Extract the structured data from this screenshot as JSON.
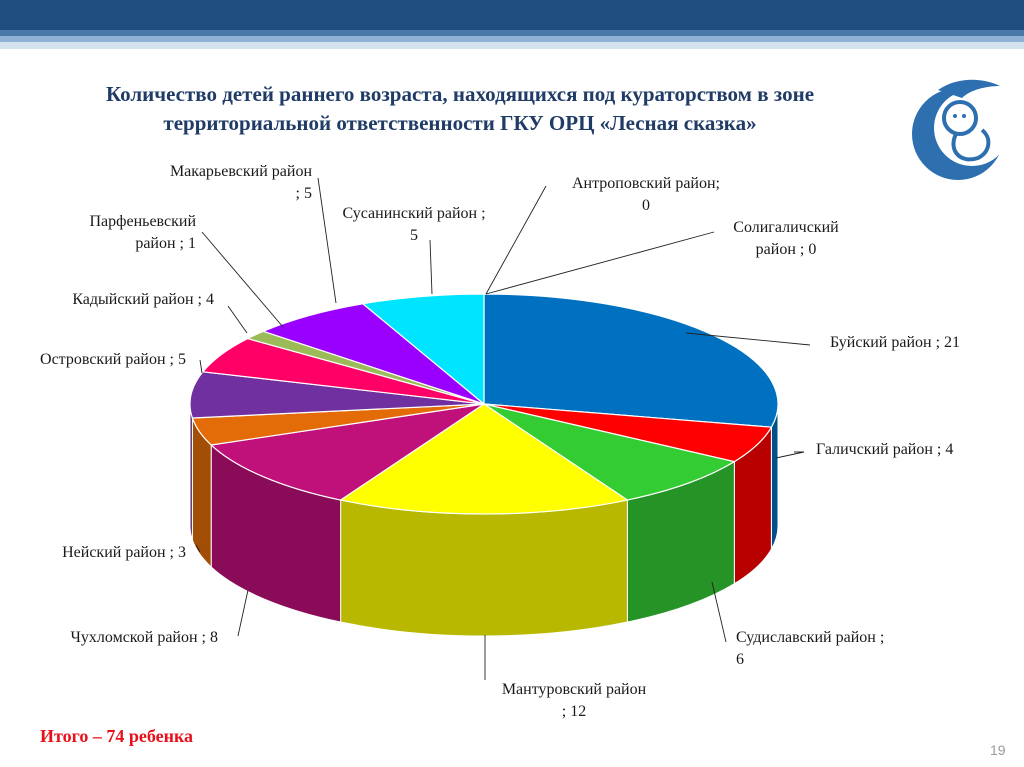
{
  "title": {
    "line1": "Количество детей раннего возраста, находящихся под кураторством в зоне",
    "line2": "территориальной ответственности ГКУ ОРЦ «Лесная сказка»"
  },
  "total": "Итого –  74 ребенка",
  "page_number": "19",
  "colors": {
    "header_dark": "#1f4e7e",
    "title": "#1f3b66",
    "total": "#e8101a"
  },
  "chart_data": {
    "type": "pie",
    "title": "Количество детей раннего возраста, находящихся под кураторством в зоне территориальной ответственности ГКУ ОРЦ «Лесная сказка»",
    "total": 74,
    "slices": [
      {
        "name": "Буйский район",
        "value": 21,
        "color": "#0070c0",
        "label": [
          "Буйский район ; 21"
        ]
      },
      {
        "name": "Галичский район",
        "value": 4,
        "color": "#ff0000",
        "label": [
          "Галичский район ; 4"
        ]
      },
      {
        "name": "Судиславский район",
        "value": 6,
        "color": "#33cc33",
        "label": [
          "Судиславский район ;",
          "6"
        ]
      },
      {
        "name": "Мантуровский район",
        "value": 12,
        "color": "#ffff00",
        "label": [
          "Мантуровский район",
          "; 12"
        ]
      },
      {
        "name": "Чухломской район",
        "value": 8,
        "color": "#c0107a",
        "label": [
          "Чухломской район ; 8"
        ]
      },
      {
        "name": "Нейский район",
        "value": 3,
        "color": "#e36c09",
        "label": [
          "Нейский район ; 3"
        ]
      },
      {
        "name": "Островский район",
        "value": 5,
        "color": "#7030a0",
        "label": [
          "Островский район ; 5"
        ]
      },
      {
        "name": "Кадыйский район",
        "value": 4,
        "color": "#ff0066",
        "label": [
          "Кадыйский район ; 4"
        ]
      },
      {
        "name": "Парфеньевский район",
        "value": 1,
        "color": "#9bbb59",
        "label": [
          "Парфеньевский",
          "район ; 1"
        ]
      },
      {
        "name": "Макарьевский район",
        "value": 5,
        "color": "#9900ff",
        "label": [
          "Макарьевский район",
          "; 5"
        ]
      },
      {
        "name": "Сусанинский район",
        "value": 5,
        "color": "#00e5ff",
        "label": [
          "Сусанинский район ;",
          "5"
        ]
      },
      {
        "name": "Антроповский район",
        "value": 0,
        "color": "#00b0f0",
        "label": [
          "Антроповский район;",
          "0"
        ]
      },
      {
        "name": "Солигаличский район",
        "value": 0,
        "color": "#4bacc6",
        "label": [
          "Солигаличский",
          "район ; 0"
        ]
      }
    ]
  }
}
